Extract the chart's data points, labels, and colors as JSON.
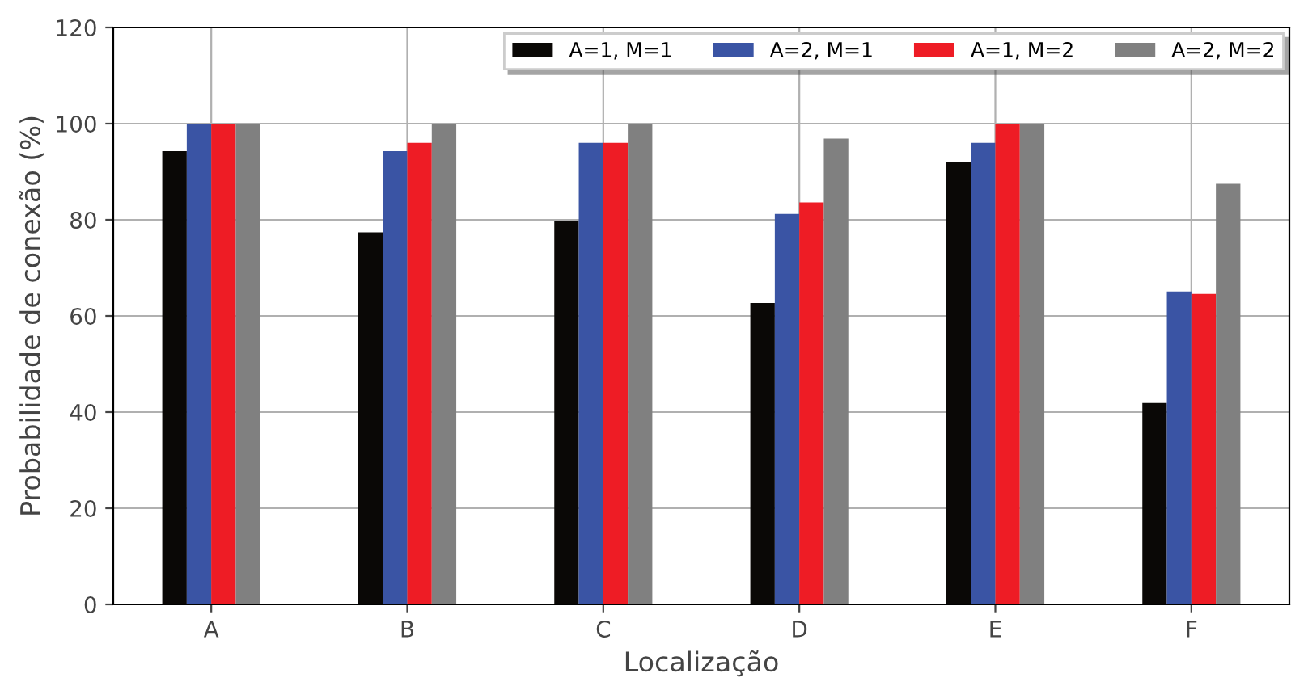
{
  "chart_data": {
    "type": "bar",
    "xlabel": "Localização",
    "ylabel": "Probabilidade de conexão (%)",
    "categories": [
      "A",
      "B",
      "C",
      "D",
      "E",
      "F"
    ],
    "series": [
      {
        "name": "A=1, M=1",
        "color": "#0a0806",
        "values": [
          94.3,
          77.4,
          79.7,
          62.7,
          92.1,
          41.9
        ]
      },
      {
        "name": "A=2, M=1",
        "color": "#3a54a4",
        "values": [
          100,
          94.3,
          96,
          81.2,
          96,
          65.1
        ]
      },
      {
        "name": "A=1, M=2",
        "color": "#ee1c25",
        "values": [
          100,
          96,
          96,
          83.6,
          100,
          64.6
        ]
      },
      {
        "name": "A=2, M=2",
        "color": "#808080",
        "values": [
          100,
          100,
          100,
          96.9,
          100,
          87.5
        ]
      }
    ],
    "ylim": [
      0,
      120
    ],
    "yticks": [
      0,
      20,
      40,
      60,
      80,
      100,
      120
    ],
    "grid": true,
    "legend": "top right"
  }
}
